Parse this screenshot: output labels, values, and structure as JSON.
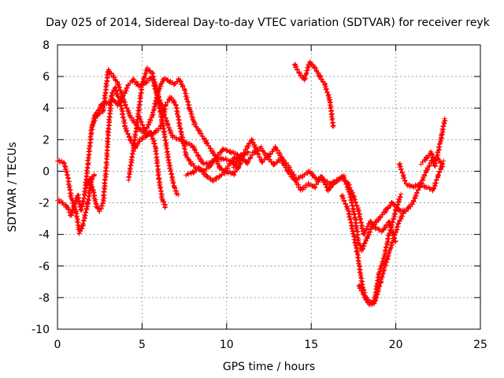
{
  "chart_data": {
    "type": "scatter",
    "title": "Day 025 of 2014, Sidereal Day-to-day VTEC variation (SDTVAR) for receiver reyk",
    "xlabel": "GPS time / hours",
    "ylabel": "SDTVAR / TECUs",
    "xlim": [
      0,
      25
    ],
    "ylim": [
      -10,
      8
    ],
    "xticks": [
      0,
      5,
      10,
      15,
      20,
      25
    ],
    "yticks": [
      -10,
      -8,
      -6,
      -4,
      -2,
      0,
      2,
      4,
      6,
      8
    ],
    "grid": true,
    "marker": "+",
    "series": [
      {
        "name": "SDTVAR",
        "color": "#ff0000",
        "tracks": [
          [
            [
              0,
              0.7
            ],
            [
              0.4,
              0.5
            ],
            [
              0.6,
              -0.3
            ],
            [
              0.8,
              -1.6
            ],
            [
              1.1,
              -2.6
            ],
            [
              1.3,
              -3.9
            ],
            [
              1.5,
              -3.4
            ],
            [
              1.8,
              -2.0
            ],
            [
              2.0,
              -0.5
            ],
            [
              2.2,
              -0.2
            ]
          ],
          [
            [
              0,
              -1.8
            ],
            [
              0.3,
              -2.0
            ],
            [
              0.6,
              -2.3
            ],
            [
              0.8,
              -2.8
            ],
            [
              1.0,
              -2.2
            ],
            [
              1.2,
              -1.5
            ],
            [
              1.4,
              -2.5
            ],
            [
              1.6,
              -1.5
            ],
            [
              1.8,
              0.5
            ],
            [
              2.0,
              2.5
            ],
            [
              2.2,
              3.5
            ],
            [
              2.4,
              3.8
            ],
            [
              2.6,
              4.2
            ],
            [
              2.8,
              4.4
            ],
            [
              3.0,
              4.3
            ],
            [
              3.3,
              4.5
            ],
            [
              3.6,
              4.2
            ],
            [
              3.9,
              4.8
            ],
            [
              4.2,
              5.5
            ],
            [
              4.5,
              5.8
            ],
            [
              4.8,
              5.4
            ],
            [
              5.2,
              5.6
            ],
            [
              5.6,
              6.0
            ],
            [
              6.0,
              4.2
            ],
            [
              6.3,
              2.5
            ],
            [
              6.6,
              0.5
            ],
            [
              6.9,
              -1.0
            ],
            [
              7.1,
              -1.5
            ]
          ],
          [
            [
              1.6,
              -1.2
            ],
            [
              1.9,
              -0.5
            ],
            [
              2.1,
              -1.2
            ],
            [
              2.3,
              -2.2
            ],
            [
              2.5,
              -2.5
            ],
            [
              2.7,
              -2.0
            ],
            [
              2.9,
              0.5
            ],
            [
              3.0,
              2.5
            ],
            [
              3.2,
              4.8
            ],
            [
              3.4,
              5.3
            ],
            [
              3.5,
              4.9
            ],
            [
              3.7,
              4.5
            ],
            [
              4.0,
              2.8
            ],
            [
              4.3,
              2.0
            ],
            [
              4.6,
              1.5
            ],
            [
              4.9,
              2.0
            ],
            [
              5.2,
              2.2
            ],
            [
              5.5,
              2.5
            ],
            [
              5.8,
              1.5
            ],
            [
              6.0,
              -0.5
            ],
            [
              6.2,
              -1.8
            ],
            [
              6.4,
              -2.3
            ]
          ],
          [
            [
              2.0,
              2.8
            ],
            [
              2.3,
              3.5
            ],
            [
              2.7,
              3.8
            ],
            [
              3.0,
              6.4
            ],
            [
              3.3,
              6.0
            ],
            [
              3.6,
              5.5
            ],
            [
              3.9,
              4.5
            ],
            [
              4.3,
              3.5
            ],
            [
              4.8,
              2.7
            ],
            [
              5.3,
              2.3
            ],
            [
              5.7,
              2.4
            ],
            [
              6.1,
              2.8
            ],
            [
              6.4,
              4.2
            ],
            [
              6.7,
              4.7
            ],
            [
              7.0,
              4.2
            ],
            [
              7.3,
              2.5
            ],
            [
              7.6,
              1.0
            ],
            [
              7.9,
              0.5
            ],
            [
              8.2,
              0.2
            ],
            [
              8.6,
              0.0
            ],
            [
              9.0,
              0.3
            ],
            [
              9.4,
              0.9
            ],
            [
              9.8,
              1.4
            ],
            [
              10.3,
              1.2
            ],
            [
              10.8,
              1.0
            ],
            [
              11.3,
              1.2
            ]
          ],
          [
            [
              4.2,
              -0.5
            ],
            [
              4.5,
              1.5
            ],
            [
              4.8,
              3.8
            ],
            [
              5.0,
              5.5
            ],
            [
              5.3,
              6.5
            ],
            [
              5.6,
              6.2
            ],
            [
              5.9,
              5.0
            ],
            [
              6.2,
              4.0
            ],
            [
              6.5,
              3.0
            ],
            [
              6.8,
              2.2
            ],
            [
              7.2,
              2.0
            ],
            [
              7.6,
              1.8
            ],
            [
              8.0,
              1.6
            ],
            [
              8.3,
              1.0
            ],
            [
              8.6,
              0.5
            ],
            [
              9.0,
              0.5
            ],
            [
              9.4,
              0.8
            ],
            [
              9.8,
              0.8
            ],
            [
              10.3,
              0.6
            ],
            [
              10.7,
              0.2
            ]
          ],
          [
            [
              4.8,
              3.5
            ],
            [
              5.2,
              2.5
            ],
            [
              5.6,
              3.5
            ],
            [
              6.0,
              5.2
            ],
            [
              6.3,
              5.9
            ],
            [
              6.6,
              5.7
            ],
            [
              6.9,
              5.5
            ],
            [
              7.2,
              5.8
            ],
            [
              7.5,
              5.2
            ],
            [
              7.8,
              4.0
            ],
            [
              8.1,
              3.0
            ],
            [
              8.4,
              2.5
            ],
            [
              8.7,
              2.0
            ],
            [
              9.0,
              1.5
            ],
            [
              9.3,
              1.0
            ],
            [
              9.6,
              0.2
            ],
            [
              9.9,
              0.0
            ],
            [
              10.2,
              0.5
            ],
            [
              10.5,
              0.9
            ],
            [
              10.8,
              0.6
            ]
          ],
          [
            [
              7.6,
              -0.2
            ],
            [
              8.0,
              -0.1
            ],
            [
              8.4,
              0.2
            ],
            [
              8.8,
              -0.3
            ],
            [
              9.2,
              -0.6
            ],
            [
              9.6,
              -0.3
            ],
            [
              10.0,
              0.0
            ],
            [
              10.4,
              -0.2
            ],
            [
              10.8,
              0.5
            ],
            [
              11.2,
              1.5
            ],
            [
              11.5,
              2.0
            ],
            [
              11.8,
              1.2
            ],
            [
              12.1,
              0.6
            ],
            [
              12.5,
              1.0
            ],
            [
              12.9,
              1.5
            ],
            [
              13.3,
              0.8
            ],
            [
              13.7,
              0.2
            ],
            [
              14.1,
              -0.5
            ],
            [
              14.5,
              -0.3
            ],
            [
              14.9,
              0.0
            ],
            [
              15.3,
              -0.5
            ],
            [
              15.7,
              -0.5
            ],
            [
              16.1,
              -0.8
            ],
            [
              16.5,
              -0.6
            ],
            [
              16.9,
              -0.3
            ],
            [
              17.3,
              -1.5
            ],
            [
              17.6,
              -3.0
            ],
            [
              17.8,
              -4.5
            ],
            [
              18.0,
              -5.0
            ],
            [
              18.3,
              -4.2
            ],
            [
              18.6,
              -3.5
            ],
            [
              19.0,
              -3.0
            ],
            [
              19.4,
              -2.5
            ],
            [
              19.8,
              -2.0
            ],
            [
              20.2,
              -2.5
            ],
            [
              20.6,
              -2.5
            ],
            [
              21.0,
              -2.0
            ],
            [
              21.4,
              -1.0
            ],
            [
              21.8,
              0.0
            ],
            [
              22.2,
              0.8
            ],
            [
              22.5,
              0.8
            ],
            [
              22.8,
              0.3
            ]
          ],
          [
            [
              10.4,
              0.3
            ],
            [
              10.8,
              1.0
            ],
            [
              11.2,
              0.5
            ],
            [
              11.6,
              1.2
            ],
            [
              12.0,
              1.5
            ],
            [
              12.4,
              0.9
            ],
            [
              12.8,
              0.4
            ],
            [
              13.2,
              0.8
            ],
            [
              13.6,
              0.0
            ],
            [
              14.0,
              -0.5
            ],
            [
              14.4,
              -1.2
            ],
            [
              14.8,
              -0.8
            ],
            [
              15.2,
              -1.0
            ],
            [
              15.6,
              -0.3
            ],
            [
              16.0,
              -1.2
            ],
            [
              16.4,
              -0.7
            ],
            [
              16.8,
              -0.4
            ],
            [
              17.2,
              -0.8
            ],
            [
              17.5,
              -1.6
            ],
            [
              17.8,
              -2.5
            ],
            [
              18.1,
              -4.0
            ],
            [
              18.5,
              -3.2
            ],
            [
              18.8,
              -3.6
            ],
            [
              19.2,
              -3.8
            ],
            [
              19.6,
              -3.2
            ],
            [
              20.0,
              -4.5
            ]
          ],
          [
            [
              14.0,
              6.8
            ],
            [
              14.3,
              6.2
            ],
            [
              14.6,
              5.8
            ],
            [
              14.9,
              6.9
            ],
            [
              15.2,
              6.6
            ],
            [
              15.5,
              6.0
            ],
            [
              15.8,
              5.5
            ],
            [
              16.1,
              4.5
            ],
            [
              16.3,
              2.8
            ]
          ],
          [
            [
              16.8,
              -1.5
            ],
            [
              17.2,
              -2.5
            ],
            [
              17.5,
              -4.0
            ],
            [
              17.7,
              -5.0
            ],
            [
              18.0,
              -7.1
            ],
            [
              18.2,
              -8.0
            ],
            [
              18.5,
              -8.3
            ],
            [
              18.8,
              -8.2
            ],
            [
              19.1,
              -7.0
            ],
            [
              19.5,
              -5.5
            ],
            [
              19.8,
              -4.5
            ],
            [
              20.2,
              -3.2
            ],
            [
              20.5,
              -2.5
            ]
          ],
          [
            [
              17.8,
              -7.2
            ],
            [
              18.1,
              -7.8
            ],
            [
              18.4,
              -8.4
            ],
            [
              18.7,
              -8.4
            ],
            [
              19.0,
              -6.5
            ],
            [
              19.3,
              -5.5
            ],
            [
              19.6,
              -4.0
            ],
            [
              20.0,
              -2.5
            ],
            [
              20.3,
              -1.5
            ]
          ],
          [
            [
              20.2,
              0.5
            ],
            [
              20.6,
              -0.8
            ],
            [
              21.0,
              -1.0
            ],
            [
              21.4,
              -0.8
            ],
            [
              21.8,
              -1.0
            ],
            [
              22.2,
              -1.2
            ],
            [
              22.5,
              -0.3
            ],
            [
              22.8,
              0.6
            ]
          ],
          [
            [
              21.5,
              0.5
            ],
            [
              21.8,
              0.8
            ],
            [
              22.1,
              1.2
            ],
            [
              22.3,
              0.3
            ],
            [
              22.5,
              1.2
            ],
            [
              22.7,
              2.2
            ],
            [
              22.9,
              3.3
            ]
          ]
        ]
      }
    ]
  }
}
